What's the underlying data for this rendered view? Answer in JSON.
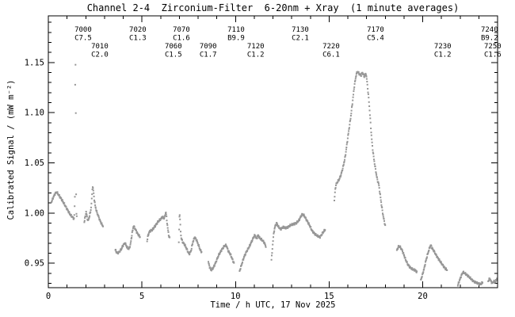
{
  "title": "Channel 2-4  Zirconium-Filter  6-20nm + Xray  (1 minute averages)",
  "chart_data": {
    "type": "scatter",
    "title": "Channel 2-4  Zirconium-Filter  6-20nm + Xray  (1 minute averages)",
    "xlabel": "Time / h UTC, 17 Nov 2025",
    "ylabel": "Calibrated Signal / (mW m⁻²)",
    "xlim": [
      0,
      24
    ],
    "ylim": [
      0.9256,
      1.1965
    ],
    "grid": false,
    "legend": "none",
    "point_color": "#969696",
    "axis_color": "#000000",
    "sample_interval_minutes": 1,
    "xticks": {
      "major": [
        {
          "v": 0,
          "label": "0"
        },
        {
          "v": 5,
          "label": "5"
        },
        {
          "v": 10,
          "label": "10"
        },
        {
          "v": 15,
          "label": "15"
        },
        {
          "v": 20,
          "label": "20"
        }
      ],
      "minor_step": 1
    },
    "yticks": {
      "major": [
        {
          "v": 0.95,
          "label": "0.95"
        },
        {
          "v": 1.0,
          "label": "1.00"
        },
        {
          "v": 1.05,
          "label": "1.05"
        },
        {
          "v": 1.1,
          "label": "1.10"
        },
        {
          "v": 1.15,
          "label": "1.15"
        }
      ],
      "minor_step": 0.01
    },
    "flare_labels": [
      {
        "flare": "7000",
        "class": "C7.5",
        "row": 1,
        "t": 1.4
      },
      {
        "flare": "7010",
        "class": "C2.0",
        "row": 2,
        "t": 2.29
      },
      {
        "flare": "7020",
        "class": "C1.3",
        "row": 1,
        "t": 4.32
      },
      {
        "flare": "7060",
        "class": "C1.5",
        "row": 2,
        "t": 6.22
      },
      {
        "flare": "7070",
        "class": "C1.6",
        "row": 1,
        "t": 6.65
      },
      {
        "flare": "7090",
        "class": "C1.7",
        "row": 2,
        "t": 8.08
      },
      {
        "flare": "7110",
        "class": "B9.9",
        "row": 1,
        "t": 9.57
      },
      {
        "flare": "7120",
        "class": "C1.2",
        "row": 2,
        "t": 10.62
      },
      {
        "flare": "7130",
        "class": "C2.1",
        "row": 1,
        "t": 13.0
      },
      {
        "flare": "7220",
        "class": "C6.1",
        "row": 2,
        "t": 14.65
      },
      {
        "flare": "7170",
        "class": "C5.4",
        "row": 1,
        "t": 17.02
      },
      {
        "flare": "7230",
        "class": "C1.2",
        "row": 2,
        "t": 20.61
      },
      {
        "flare": "7240",
        "class": "B9.2",
        "row": 1,
        "t": 23.11
      },
      {
        "flare": "7250",
        "class": "C1.6",
        "row": 2,
        "t": 23.28
      }
    ],
    "segments": [
      [
        [
          0.17,
          1.011
        ],
        [
          0.25,
          1.015
        ],
        [
          0.35,
          1.019
        ],
        [
          0.45,
          1.021
        ],
        [
          0.55,
          1.018
        ],
        [
          0.7,
          1.014
        ],
        [
          0.85,
          1.009
        ],
        [
          1.0,
          1.004
        ],
        [
          1.15,
          0.999
        ],
        [
          1.28,
          0.996
        ],
        [
          1.38,
          0.994
        ],
        [
          1.42,
          1.016
        ],
        [
          1.44,
          1.151
        ],
        [
          1.46,
          1.147
        ],
        [
          1.49,
          1.002
        ],
        [
          1.52,
          0.997
        ]
      ],
      [
        [
          1.92,
          0.991
        ],
        [
          1.97,
          0.996
        ],
        [
          2.02,
          1.001
        ],
        [
          2.07,
          0.996
        ],
        [
          2.12,
          0.992
        ],
        [
          2.2,
          0.997
        ],
        [
          2.28,
          1.004
        ],
        [
          2.33,
          1.016
        ],
        [
          2.36,
          1.027
        ],
        [
          2.4,
          1.023
        ],
        [
          2.45,
          1.014
        ],
        [
          2.5,
          1.008
        ],
        [
          2.57,
          1.002
        ],
        [
          2.65,
          0.998
        ],
        [
          2.75,
          0.993
        ],
        [
          2.85,
          0.989
        ],
        [
          2.92,
          0.987
        ]
      ],
      [
        [
          3.58,
          0.963
        ],
        [
          3.68,
          0.96
        ],
        [
          3.78,
          0.961
        ],
        [
          3.9,
          0.964
        ],
        [
          4.0,
          0.968
        ],
        [
          4.1,
          0.97
        ],
        [
          4.2,
          0.966
        ],
        [
          4.3,
          0.964
        ],
        [
          4.38,
          0.968
        ],
        [
          4.48,
          0.98
        ],
        [
          4.55,
          0.987
        ],
        [
          4.62,
          0.985
        ],
        [
          4.72,
          0.981
        ],
        [
          4.82,
          0.978
        ],
        [
          4.9,
          0.976
        ]
      ],
      [
        [
          5.28,
          0.972
        ],
        [
          5.33,
          0.978
        ],
        [
          5.42,
          0.982
        ],
        [
          5.55,
          0.983
        ],
        [
          5.7,
          0.987
        ],
        [
          5.85,
          0.991
        ],
        [
          6.0,
          0.994
        ],
        [
          6.1,
          0.996
        ],
        [
          6.2,
          0.995
        ],
        [
          6.28,
          1.001
        ],
        [
          6.33,
          0.993
        ],
        [
          6.38,
          0.985
        ],
        [
          6.43,
          0.978
        ],
        [
          6.48,
          0.975
        ]
      ],
      [
        [
          6.97,
          0.971
        ],
        [
          6.99,
          0.986
        ],
        [
          7.01,
          1.002
        ],
        [
          7.04,
          0.992
        ],
        [
          7.07,
          0.982
        ],
        [
          7.1,
          0.975
        ],
        [
          7.18,
          0.971
        ],
        [
          7.3,
          0.968
        ],
        [
          7.42,
          0.963
        ],
        [
          7.52,
          0.959
        ],
        [
          7.62,
          0.962
        ],
        [
          7.72,
          0.971
        ],
        [
          7.82,
          0.976
        ],
        [
          7.92,
          0.973
        ],
        [
          8.02,
          0.968
        ],
        [
          8.12,
          0.963
        ],
        [
          8.2,
          0.961
        ]
      ],
      [
        [
          8.55,
          0.951
        ],
        [
          8.62,
          0.946
        ],
        [
          8.7,
          0.943
        ],
        [
          8.8,
          0.945
        ],
        [
          8.95,
          0.951
        ],
        [
          9.1,
          0.958
        ],
        [
          9.25,
          0.963
        ],
        [
          9.4,
          0.967
        ],
        [
          9.5,
          0.968
        ],
        [
          9.62,
          0.962
        ],
        [
          9.75,
          0.958
        ],
        [
          9.85,
          0.953
        ],
        [
          9.92,
          0.95
        ]
      ],
      [
        [
          10.22,
          0.942
        ],
        [
          10.3,
          0.947
        ],
        [
          10.45,
          0.956
        ],
        [
          10.6,
          0.962
        ],
        [
          10.75,
          0.967
        ],
        [
          10.87,
          0.972
        ],
        [
          10.97,
          0.976
        ],
        [
          11.05,
          0.978
        ],
        [
          11.12,
          0.974
        ],
        [
          11.2,
          0.978
        ],
        [
          11.3,
          0.975
        ],
        [
          11.42,
          0.973
        ],
        [
          11.52,
          0.971
        ],
        [
          11.62,
          0.967
        ]
      ],
      [
        [
          11.92,
          0.953
        ],
        [
          11.96,
          0.962
        ],
        [
          12.0,
          0.972
        ],
        [
          12.05,
          0.981
        ],
        [
          12.12,
          0.987
        ],
        [
          12.2,
          0.99
        ],
        [
          12.3,
          0.986
        ],
        [
          12.42,
          0.984
        ],
        [
          12.55,
          0.986
        ],
        [
          12.68,
          0.985
        ],
        [
          12.8,
          0.986
        ],
        [
          12.95,
          0.988
        ],
        [
          13.1,
          0.989
        ],
        [
          13.25,
          0.99
        ],
        [
          13.4,
          0.993
        ],
        [
          13.5,
          0.997
        ],
        [
          13.58,
          0.999
        ],
        [
          13.68,
          0.997
        ],
        [
          13.8,
          0.993
        ],
        [
          13.95,
          0.988
        ],
        [
          14.1,
          0.982
        ],
        [
          14.25,
          0.979
        ],
        [
          14.4,
          0.977
        ],
        [
          14.52,
          0.976
        ],
        [
          14.65,
          0.98
        ],
        [
          14.8,
          0.984
        ]
      ],
      [
        [
          15.28,
          1.012
        ],
        [
          15.32,
          1.022
        ],
        [
          15.36,
          1.028
        ],
        [
          15.45,
          1.031
        ],
        [
          15.55,
          1.034
        ],
        [
          15.65,
          1.039
        ],
        [
          15.75,
          1.046
        ],
        [
          15.85,
          1.055
        ],
        [
          15.95,
          1.068
        ],
        [
          16.05,
          1.082
        ],
        [
          16.15,
          1.095
        ],
        [
          16.25,
          1.11
        ],
        [
          16.35,
          1.127
        ],
        [
          16.45,
          1.138
        ],
        [
          16.52,
          1.141
        ],
        [
          16.6,
          1.139
        ],
        [
          16.7,
          1.137
        ],
        [
          16.78,
          1.14
        ],
        [
          16.88,
          1.136
        ],
        [
          16.97,
          1.139
        ],
        [
          17.03,
          1.131
        ],
        [
          17.08,
          1.121
        ],
        [
          17.13,
          1.111
        ],
        [
          17.18,
          1.098
        ],
        [
          17.25,
          1.08
        ],
        [
          17.32,
          1.065
        ],
        [
          17.4,
          1.053
        ],
        [
          17.5,
          1.041
        ],
        [
          17.58,
          1.033
        ],
        [
          17.65,
          1.029
        ],
        [
          17.72,
          1.019
        ],
        [
          17.8,
          1.008
        ],
        [
          17.9,
          0.996
        ],
        [
          18.0,
          0.987
        ]
      ],
      [
        [
          18.62,
          0.963
        ],
        [
          18.72,
          0.967
        ],
        [
          18.8,
          0.966
        ],
        [
          18.9,
          0.963
        ],
        [
          19.0,
          0.958
        ],
        [
          19.1,
          0.953
        ],
        [
          19.2,
          0.949
        ],
        [
          19.32,
          0.946
        ],
        [
          19.45,
          0.944
        ],
        [
          19.6,
          0.943
        ],
        [
          19.7,
          0.941
        ]
      ],
      [
        [
          19.9,
          0.933
        ],
        [
          19.98,
          0.938
        ],
        [
          20.08,
          0.945
        ],
        [
          20.18,
          0.953
        ],
        [
          20.28,
          0.96
        ],
        [
          20.38,
          0.966
        ],
        [
          20.44,
          0.968
        ],
        [
          20.5,
          0.965
        ],
        [
          20.6,
          0.962
        ],
        [
          20.72,
          0.958
        ],
        [
          20.85,
          0.954
        ],
        [
          21.0,
          0.95
        ],
        [
          21.15,
          0.946
        ],
        [
          21.3,
          0.943
        ]
      ],
      [
        [
          21.88,
          0.928
        ],
        [
          21.95,
          0.932
        ],
        [
          22.05,
          0.937
        ],
        [
          22.15,
          0.941
        ],
        [
          22.25,
          0.94
        ],
        [
          22.38,
          0.938
        ],
        [
          22.5,
          0.936
        ],
        [
          22.65,
          0.933
        ],
        [
          22.8,
          0.931
        ],
        [
          22.95,
          0.93
        ],
        [
          23.1,
          0.929
        ],
        [
          23.2,
          0.931
        ]
      ],
      [
        [
          23.5,
          0.932
        ],
        [
          23.58,
          0.935
        ],
        [
          23.65,
          0.932
        ],
        [
          23.72,
          0.93
        ],
        [
          23.8,
          0.932
        ],
        [
          23.88,
          0.931
        ],
        [
          23.97,
          0.935
        ]
      ]
    ]
  }
}
